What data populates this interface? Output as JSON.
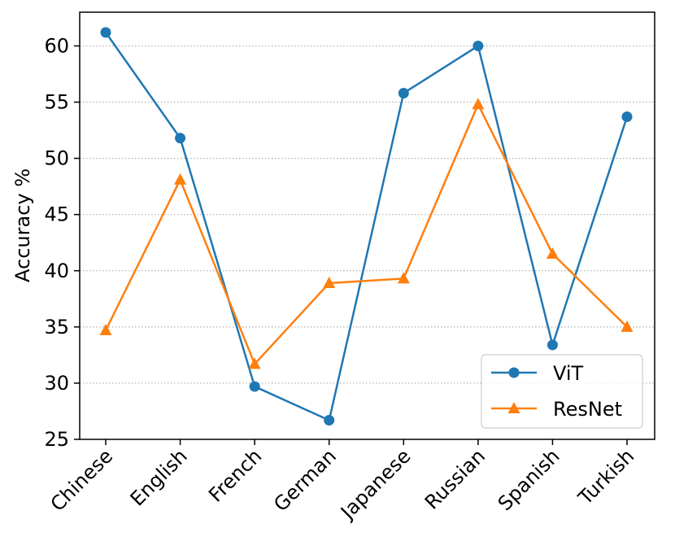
{
  "chart_data": {
    "type": "line",
    "title": "",
    "xlabel": "",
    "ylabel": "Accuracy %",
    "categories": [
      "Chinese",
      "English",
      "French",
      "German",
      "Japanese",
      "Russian",
      "Spanish",
      "Turkish"
    ],
    "ylim": [
      25,
      63
    ],
    "yticks": [
      25,
      30,
      35,
      40,
      45,
      50,
      55,
      60
    ],
    "grid": "horizontal-dotted",
    "legend_position": "lower-right",
    "series": [
      {
        "name": "ViT",
        "color": "#1f77b4",
        "marker": "circle",
        "values": [
          61.2,
          51.8,
          29.7,
          26.7,
          55.8,
          60.0,
          33.4,
          53.7
        ]
      },
      {
        "name": "ResNet",
        "color": "#ff7f0e",
        "marker": "triangle",
        "values": [
          34.7,
          48.1,
          31.7,
          38.9,
          39.3,
          54.8,
          41.5,
          35.0
        ]
      }
    ]
  }
}
